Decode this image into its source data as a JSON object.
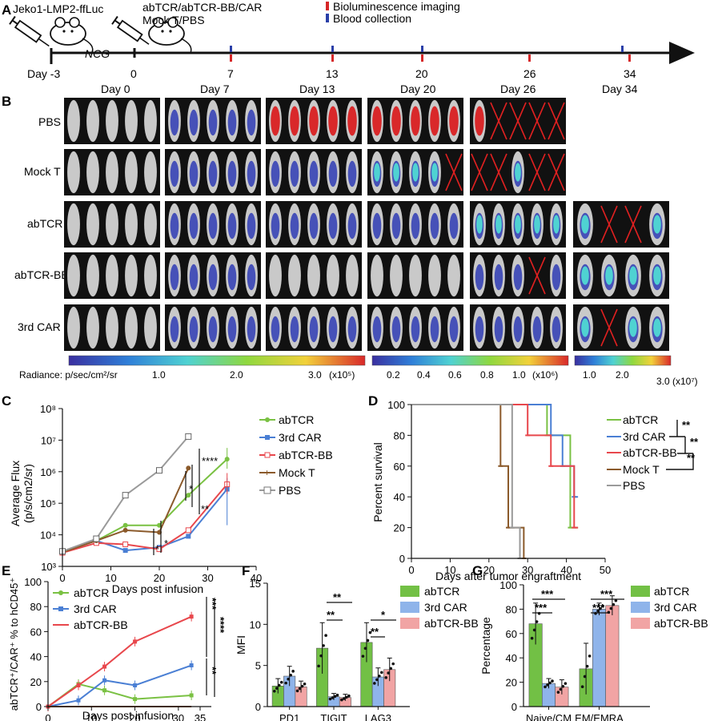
{
  "panels": {
    "A": "A",
    "B": "B",
    "C": "C",
    "D": "D",
    "E": "E",
    "F": "F",
    "G": "G"
  },
  "timeline": {
    "model_label": "Jeko1-LMP2-ffLuc",
    "host_label": "NCG",
    "treatment_line1": "abTCR/abTCR-BB/CAR",
    "treatment_line2": "Mock T/PBS",
    "legend_imaging": "Bioluminescence imaging",
    "legend_blood": "Blood collection",
    "day_labels": [
      "Day -3",
      "0",
      "7",
      "13",
      "20",
      "26",
      "34"
    ],
    "imaging_color": "#d62728",
    "blood_color": "#2a3fa8"
  },
  "imaging": {
    "days": [
      "Day 0",
      "Day 7",
      "Day 13",
      "Day 20",
      "Day 26",
      "Day 34"
    ],
    "groups": [
      "PBS",
      "Mock T",
      "abTCR",
      "abTCR-BB",
      "3rd CAR"
    ],
    "radiance_label": "Radiance: p/sec/cm²/sr",
    "scale1": {
      "ticks": [
        "1.0",
        "2.0",
        "3.0"
      ],
      "unit": "(x10⁵)"
    },
    "scale2": {
      "ticks": [
        "0.2",
        "0.4",
        "0.6",
        "0.8",
        "1.0"
      ],
      "unit": "(x10⁶)"
    },
    "scale3": {
      "ticks": [
        "1.0",
        "2.0",
        "3.0"
      ],
      "unit": "(x10⁷)"
    }
  },
  "colors": {
    "abTCR": "#7ac143",
    "3rd CAR": "#4a7fd4",
    "abTCR-BB": "#e8474c",
    "Mock T": "#8b5a2b",
    "PBS": "#9a9a9a",
    "green_fill": "#72c045",
    "blue_fill": "#8fb4ea",
    "red_fill": "#f1a4a4"
  },
  "chart_data": [
    {
      "panel": "C",
      "type": "line",
      "xlabel": "Days post infusion",
      "ylabel": "Average Flux",
      "ylabel2": "(p/s/cm2/sr)",
      "log_y": true,
      "xlim": [
        0,
        40
      ],
      "ylim_exp": [
        3,
        8
      ],
      "x_ticks": [
        "0",
        "10",
        "20",
        "30",
        "40"
      ],
      "y_ticks": [
        "10³",
        "10⁴",
        "10⁵",
        "10⁶",
        "10⁷",
        "10⁸"
      ],
      "series": [
        {
          "name": "abTCR",
          "x": [
            0,
            7,
            13,
            20,
            26,
            34
          ],
          "y": [
            3000,
            6500,
            20000,
            20000,
            180000,
            2500000
          ]
        },
        {
          "name": "3rd CAR",
          "x": [
            0,
            7,
            13,
            20,
            26,
            34
          ],
          "y": [
            3000,
            6500,
            3200,
            4000,
            9000,
            280000
          ]
        },
        {
          "name": "abTCR-BB",
          "x": [
            0,
            7,
            13,
            20,
            26,
            34
          ],
          "y": [
            2700,
            5500,
            5000,
            3500,
            14000,
            400000
          ]
        },
        {
          "name": "Mock T",
          "x": [
            0,
            7,
            13,
            20,
            26
          ],
          "y": [
            2800,
            6500,
            14000,
            12000,
            1300000
          ]
        },
        {
          "name": "PBS",
          "x": [
            0,
            7,
            13,
            20,
            26
          ],
          "y": [
            3000,
            7500,
            180000,
            1100000,
            13000000
          ]
        }
      ],
      "annotations": [
        "*",
        "*",
        "*",
        "**",
        "****"
      ]
    },
    {
      "panel": "D",
      "type": "line",
      "xlabel": "Days after tumor engraftment",
      "ylabel": "Percent survival",
      "xlim": [
        0,
        50
      ],
      "ylim": [
        0,
        100
      ],
      "x_ticks": [
        "0",
        "10",
        "20",
        "30",
        "40",
        "50"
      ],
      "y_ticks": [
        "0",
        "20",
        "40",
        "60",
        "80",
        "100"
      ],
      "series": [
        {
          "name": "abTCR",
          "x": [
            0,
            35,
            35,
            41,
            41,
            43
          ],
          "y": [
            100,
            100,
            80,
            80,
            20,
            20
          ]
        },
        {
          "name": "3rd CAR",
          "x": [
            0,
            36,
            36,
            39,
            39,
            42,
            42,
            43
          ],
          "y": [
            100,
            100,
            80,
            80,
            60,
            60,
            40,
            40
          ]
        },
        {
          "name": "abTCR-BB",
          "x": [
            0,
            30,
            30,
            36,
            36,
            42,
            42,
            43
          ],
          "y": [
            100,
            100,
            80,
            80,
            60,
            60,
            20,
            20
          ]
        },
        {
          "name": "Mock T",
          "x": [
            0,
            23,
            23,
            25,
            25,
            26,
            26,
            29,
            29
          ],
          "y": [
            100,
            100,
            60,
            60,
            20,
            20,
            20,
            20,
            0
          ]
        },
        {
          "name": "PBS",
          "x": [
            0,
            26,
            26,
            28,
            28
          ],
          "y": [
            100,
            100,
            20,
            20,
            0
          ]
        }
      ],
      "annotations": [
        "**",
        "**",
        "**"
      ]
    },
    {
      "panel": "E",
      "type": "line",
      "xlabel": "Days post infusion",
      "ylabel": "abTCR⁺/CAR⁺ % to hCD45⁺",
      "xlim": [
        0,
        35
      ],
      "ylim": [
        0,
        100
      ],
      "x_ticks": [
        "0",
        "10",
        "20",
        "30",
        "35"
      ],
      "y_ticks": [
        "0",
        "20",
        "40",
        "60",
        "80",
        "100"
      ],
      "series": [
        {
          "name": "abTCR",
          "x": [
            0,
            7,
            13,
            20,
            33
          ],
          "y": [
            0,
            18,
            13,
            6,
            9
          ]
        },
        {
          "name": "3rd CAR",
          "x": [
            0,
            7,
            13,
            20,
            33
          ],
          "y": [
            0,
            5,
            21,
            17,
            33
          ]
        },
        {
          "name": "abTCR-BB",
          "x": [
            0,
            7,
            13,
            20,
            33
          ],
          "y": [
            0,
            17,
            32,
            52,
            72
          ]
        },
        {
          "name": "",
          "x": [
            0,
            7,
            13,
            20,
            33
          ],
          "y": [
            0,
            0,
            0,
            0,
            0
          ]
        }
      ],
      "annotations": [
        "***",
        "****",
        "**"
      ]
    },
    {
      "panel": "F",
      "type": "bar",
      "ylabel": "MFI",
      "ylim": [
        0,
        15
      ],
      "y_ticks": [
        "0",
        "5",
        "10",
        "15"
      ],
      "categories": [
        "PD1",
        "TIGIT",
        "LAG3"
      ],
      "series": [
        {
          "name": "abTCR",
          "values": [
            2.5,
            7.1,
            7.8
          ]
        },
        {
          "name": "3rd CAR",
          "values": [
            3.7,
            1.2,
            3.6
          ]
        },
        {
          "name": "abTCR-BB",
          "values": [
            2.4,
            1.1,
            4.5
          ]
        }
      ],
      "annotations": [
        "**",
        "**",
        "*",
        "**"
      ]
    },
    {
      "panel": "G",
      "type": "bar",
      "ylabel": "Percentage",
      "ylim": [
        0,
        100
      ],
      "y_ticks": [
        "0",
        "20",
        "40",
        "60",
        "80",
        "100"
      ],
      "categories": [
        "Naive/CM",
        "EM/EMRA"
      ],
      "series": [
        {
          "name": "abTCR",
          "values": [
            68,
            31
          ]
        },
        {
          "name": "3rd CAR",
          "values": [
            19,
            80
          ]
        },
        {
          "name": "abTCR-BB",
          "values": [
            16,
            83
          ]
        }
      ],
      "annotations": [
        "***",
        "***",
        "***",
        "***"
      ]
    }
  ]
}
